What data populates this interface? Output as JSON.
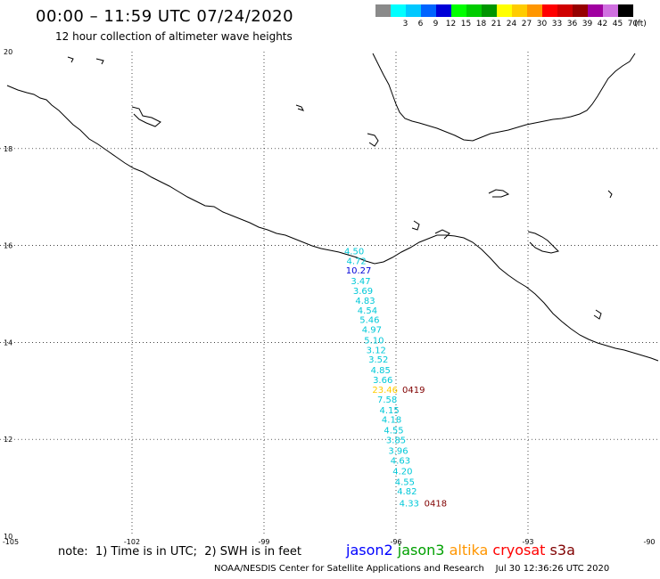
{
  "header": {
    "title": "00:00 – 11:59 UTC 07/24/2020",
    "subtitle": "12 hour collection of altimeter wave heights"
  },
  "scale": {
    "unit": "(ft)",
    "bins": [
      {
        "label": "",
        "color": "#8a8a8a"
      },
      {
        "label": "3",
        "color": "#00ffff"
      },
      {
        "label": "6",
        "color": "#00c8ff"
      },
      {
        "label": "9",
        "color": "#0064ff"
      },
      {
        "label": "12",
        "color": "#0000d8"
      },
      {
        "label": "15",
        "color": "#00ff00"
      },
      {
        "label": "18",
        "color": "#00cc00"
      },
      {
        "label": "21",
        "color": "#009600"
      },
      {
        "label": "24",
        "color": "#ffff00"
      },
      {
        "label": "27",
        "color": "#ffcc00"
      },
      {
        "label": "30",
        "color": "#ff9600"
      },
      {
        "label": "33",
        "color": "#ff0000"
      },
      {
        "label": "36",
        "color": "#d00000"
      },
      {
        "label": "39",
        "color": "#960000"
      },
      {
        "label": "42",
        "color": "#a000a0"
      },
      {
        "label": "45",
        "color": "#d070e0"
      },
      {
        "label": "70",
        "color": "#000000"
      }
    ]
  },
  "axes": {
    "lon_labels": [
      "-105",
      "-102",
      "-99",
      "-96",
      "-93",
      "-90"
    ],
    "lat_labels": [
      "20",
      "18",
      "16",
      "14",
      "12",
      "10"
    ]
  },
  "track": {
    "satellite": "jason3",
    "color_low": "#00c8d8",
    "color_mid": "#0000d8",
    "color_high": "#ffcc00",
    "points": [
      {
        "lon": -96.95,
        "lat": 15.82,
        "swh": "4.50",
        "color": "#00c8d8"
      },
      {
        "lon": -96.9,
        "lat": 15.62,
        "swh": "4.72",
        "color": "#00c8d8"
      },
      {
        "lon": -96.85,
        "lat": 15.42,
        "swh": "10.27",
        "color": "#0000d8"
      },
      {
        "lon": -96.8,
        "lat": 15.2,
        "swh": "3.47",
        "color": "#00c8d8"
      },
      {
        "lon": -96.75,
        "lat": 15.0,
        "swh": "3.69",
        "color": "#00c8d8"
      },
      {
        "lon": -96.7,
        "lat": 14.8,
        "swh": "4.83",
        "color": "#00c8d8"
      },
      {
        "lon": -96.65,
        "lat": 14.6,
        "swh": "4.54",
        "color": "#00c8d8"
      },
      {
        "lon": -96.6,
        "lat": 14.4,
        "swh": "5.46",
        "color": "#00c8d8"
      },
      {
        "lon": -96.55,
        "lat": 14.2,
        "swh": "4.97",
        "color": "#00c8d8"
      },
      {
        "lon": -96.5,
        "lat": 13.98,
        "swh": "5.10",
        "color": "#00c8d8"
      },
      {
        "lon": -96.45,
        "lat": 13.78,
        "swh": "3.12",
        "color": "#00c8d8"
      },
      {
        "lon": -96.4,
        "lat": 13.58,
        "swh": "3.52",
        "color": "#00c8d8"
      },
      {
        "lon": -96.35,
        "lat": 13.36,
        "swh": "4.85",
        "color": "#00c8d8"
      },
      {
        "lon": -96.3,
        "lat": 13.16,
        "swh": "3.66",
        "color": "#00c8d8"
      },
      {
        "lon": -96.25,
        "lat": 12.96,
        "swh": "23.46",
        "color": "#ffcc00"
      },
      {
        "lon": -96.2,
        "lat": 12.76,
        "swh": "7.58",
        "color": "#00c8d8"
      },
      {
        "lon": -96.15,
        "lat": 12.54,
        "swh": "4.15",
        "color": "#00c8d8"
      },
      {
        "lon": -96.1,
        "lat": 12.34,
        "swh": "4.18",
        "color": "#00c8d8"
      },
      {
        "lon": -96.05,
        "lat": 12.12,
        "swh": "4.55",
        "color": "#00c8d8"
      },
      {
        "lon": -96.0,
        "lat": 11.92,
        "swh": "3.85",
        "color": "#00c8d8"
      },
      {
        "lon": -95.95,
        "lat": 11.7,
        "swh": "3.96",
        "color": "#00c8d8"
      },
      {
        "lon": -95.9,
        "lat": 11.5,
        "swh": "4.63",
        "color": "#00c8d8"
      },
      {
        "lon": -95.85,
        "lat": 11.28,
        "swh": "4.20",
        "color": "#00c8d8"
      },
      {
        "lon": -95.8,
        "lat": 11.06,
        "swh": "4.55",
        "color": "#00c8d8"
      },
      {
        "lon": -95.75,
        "lat": 10.86,
        "swh": "4.82",
        "color": "#00c8d8"
      },
      {
        "lon": -95.7,
        "lat": 10.62,
        "swh": "4.33",
        "color": "#00c8d8"
      }
    ],
    "time_labels": [
      {
        "text": "0419",
        "lon": -95.6,
        "lat": 12.96
      },
      {
        "text": "0418",
        "lon": -95.1,
        "lat": 10.62
      }
    ],
    "time_color": "#800000"
  },
  "footer": {
    "note": "note:  1) Time is in UTC;  2) SWH is in feet",
    "legend": [
      {
        "name": "jason2",
        "color": "#0000ff"
      },
      {
        "name": "jason3",
        "color": "#00a000"
      },
      {
        "name": "altika",
        "color": "#ff9600"
      },
      {
        "name": "cryosat",
        "color": "#ff0000"
      },
      {
        "name": "s3a",
        "color": "#800000"
      }
    ],
    "credit": "NOAA/NESDIS Center for Satellite Applications and Research    Jul 30 12:36:26 UTC 2020"
  }
}
